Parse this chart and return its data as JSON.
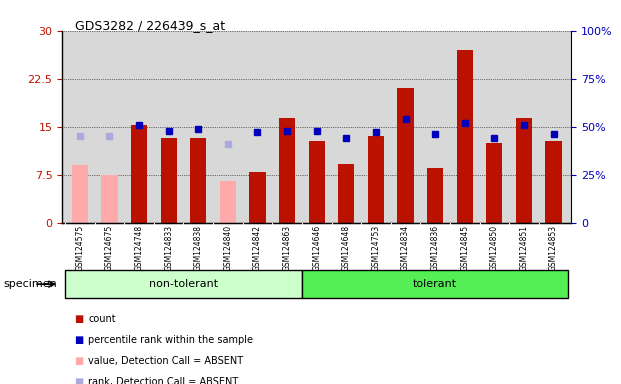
{
  "title": "GDS3282 / 226439_s_at",
  "samples": [
    "GSM124575",
    "GSM124675",
    "GSM124748",
    "GSM124833",
    "GSM124838",
    "GSM124840",
    "GSM124842",
    "GSM124863",
    "GSM124646",
    "GSM124648",
    "GSM124753",
    "GSM124834",
    "GSM124836",
    "GSM124845",
    "GSM124850",
    "GSM124851",
    "GSM124853"
  ],
  "absent": [
    true,
    true,
    false,
    false,
    false,
    true,
    false,
    false,
    false,
    false,
    false,
    false,
    false,
    false,
    false,
    false,
    false
  ],
  "count_values": [
    9.0,
    7.5,
    15.2,
    13.3,
    13.2,
    6.5,
    8.0,
    16.3,
    12.8,
    9.2,
    13.5,
    21.0,
    8.5,
    27.0,
    12.5,
    16.3,
    12.8
  ],
  "rank_percentile": [
    45,
    45,
    51,
    48,
    49,
    41,
    47,
    48,
    48,
    44,
    47,
    54,
    46,
    52,
    44,
    51,
    46
  ],
  "ylim_left": [
    0,
    30
  ],
  "ylim_right": [
    0,
    100
  ],
  "yticks_left": [
    0,
    7.5,
    15,
    22.5,
    30
  ],
  "yticks_right": [
    0,
    25,
    50,
    75,
    100
  ],
  "ytick_labels_left": [
    "0",
    "7.5",
    "15",
    "22.5",
    "30"
  ],
  "ytick_labels_right": [
    "0",
    "25%",
    "50%",
    "75%",
    "100%"
  ],
  "color_count_normal": "#BB1100",
  "color_count_absent": "#FFAAAA",
  "color_rank_normal": "#0000BB",
  "color_rank_absent": "#AAAADD",
  "group_colors_non": "#CCFFCC",
  "group_colors_tol": "#55EE55",
  "group_split": 8,
  "non_tolerant_label": "non-tolerant",
  "tolerant_label": "tolerant",
  "specimen_label": "specimen",
  "bar_width": 0.55,
  "legend_items": [
    {
      "color": "#BB1100",
      "marker": "s",
      "label": "count"
    },
    {
      "color": "#0000BB",
      "marker": "s",
      "label": "percentile rank within the sample"
    },
    {
      "color": "#FFAAAA",
      "marker": "s",
      "label": "value, Detection Call = ABSENT"
    },
    {
      "color": "#AAAADD",
      "marker": "s",
      "label": "rank, Detection Call = ABSENT"
    }
  ]
}
